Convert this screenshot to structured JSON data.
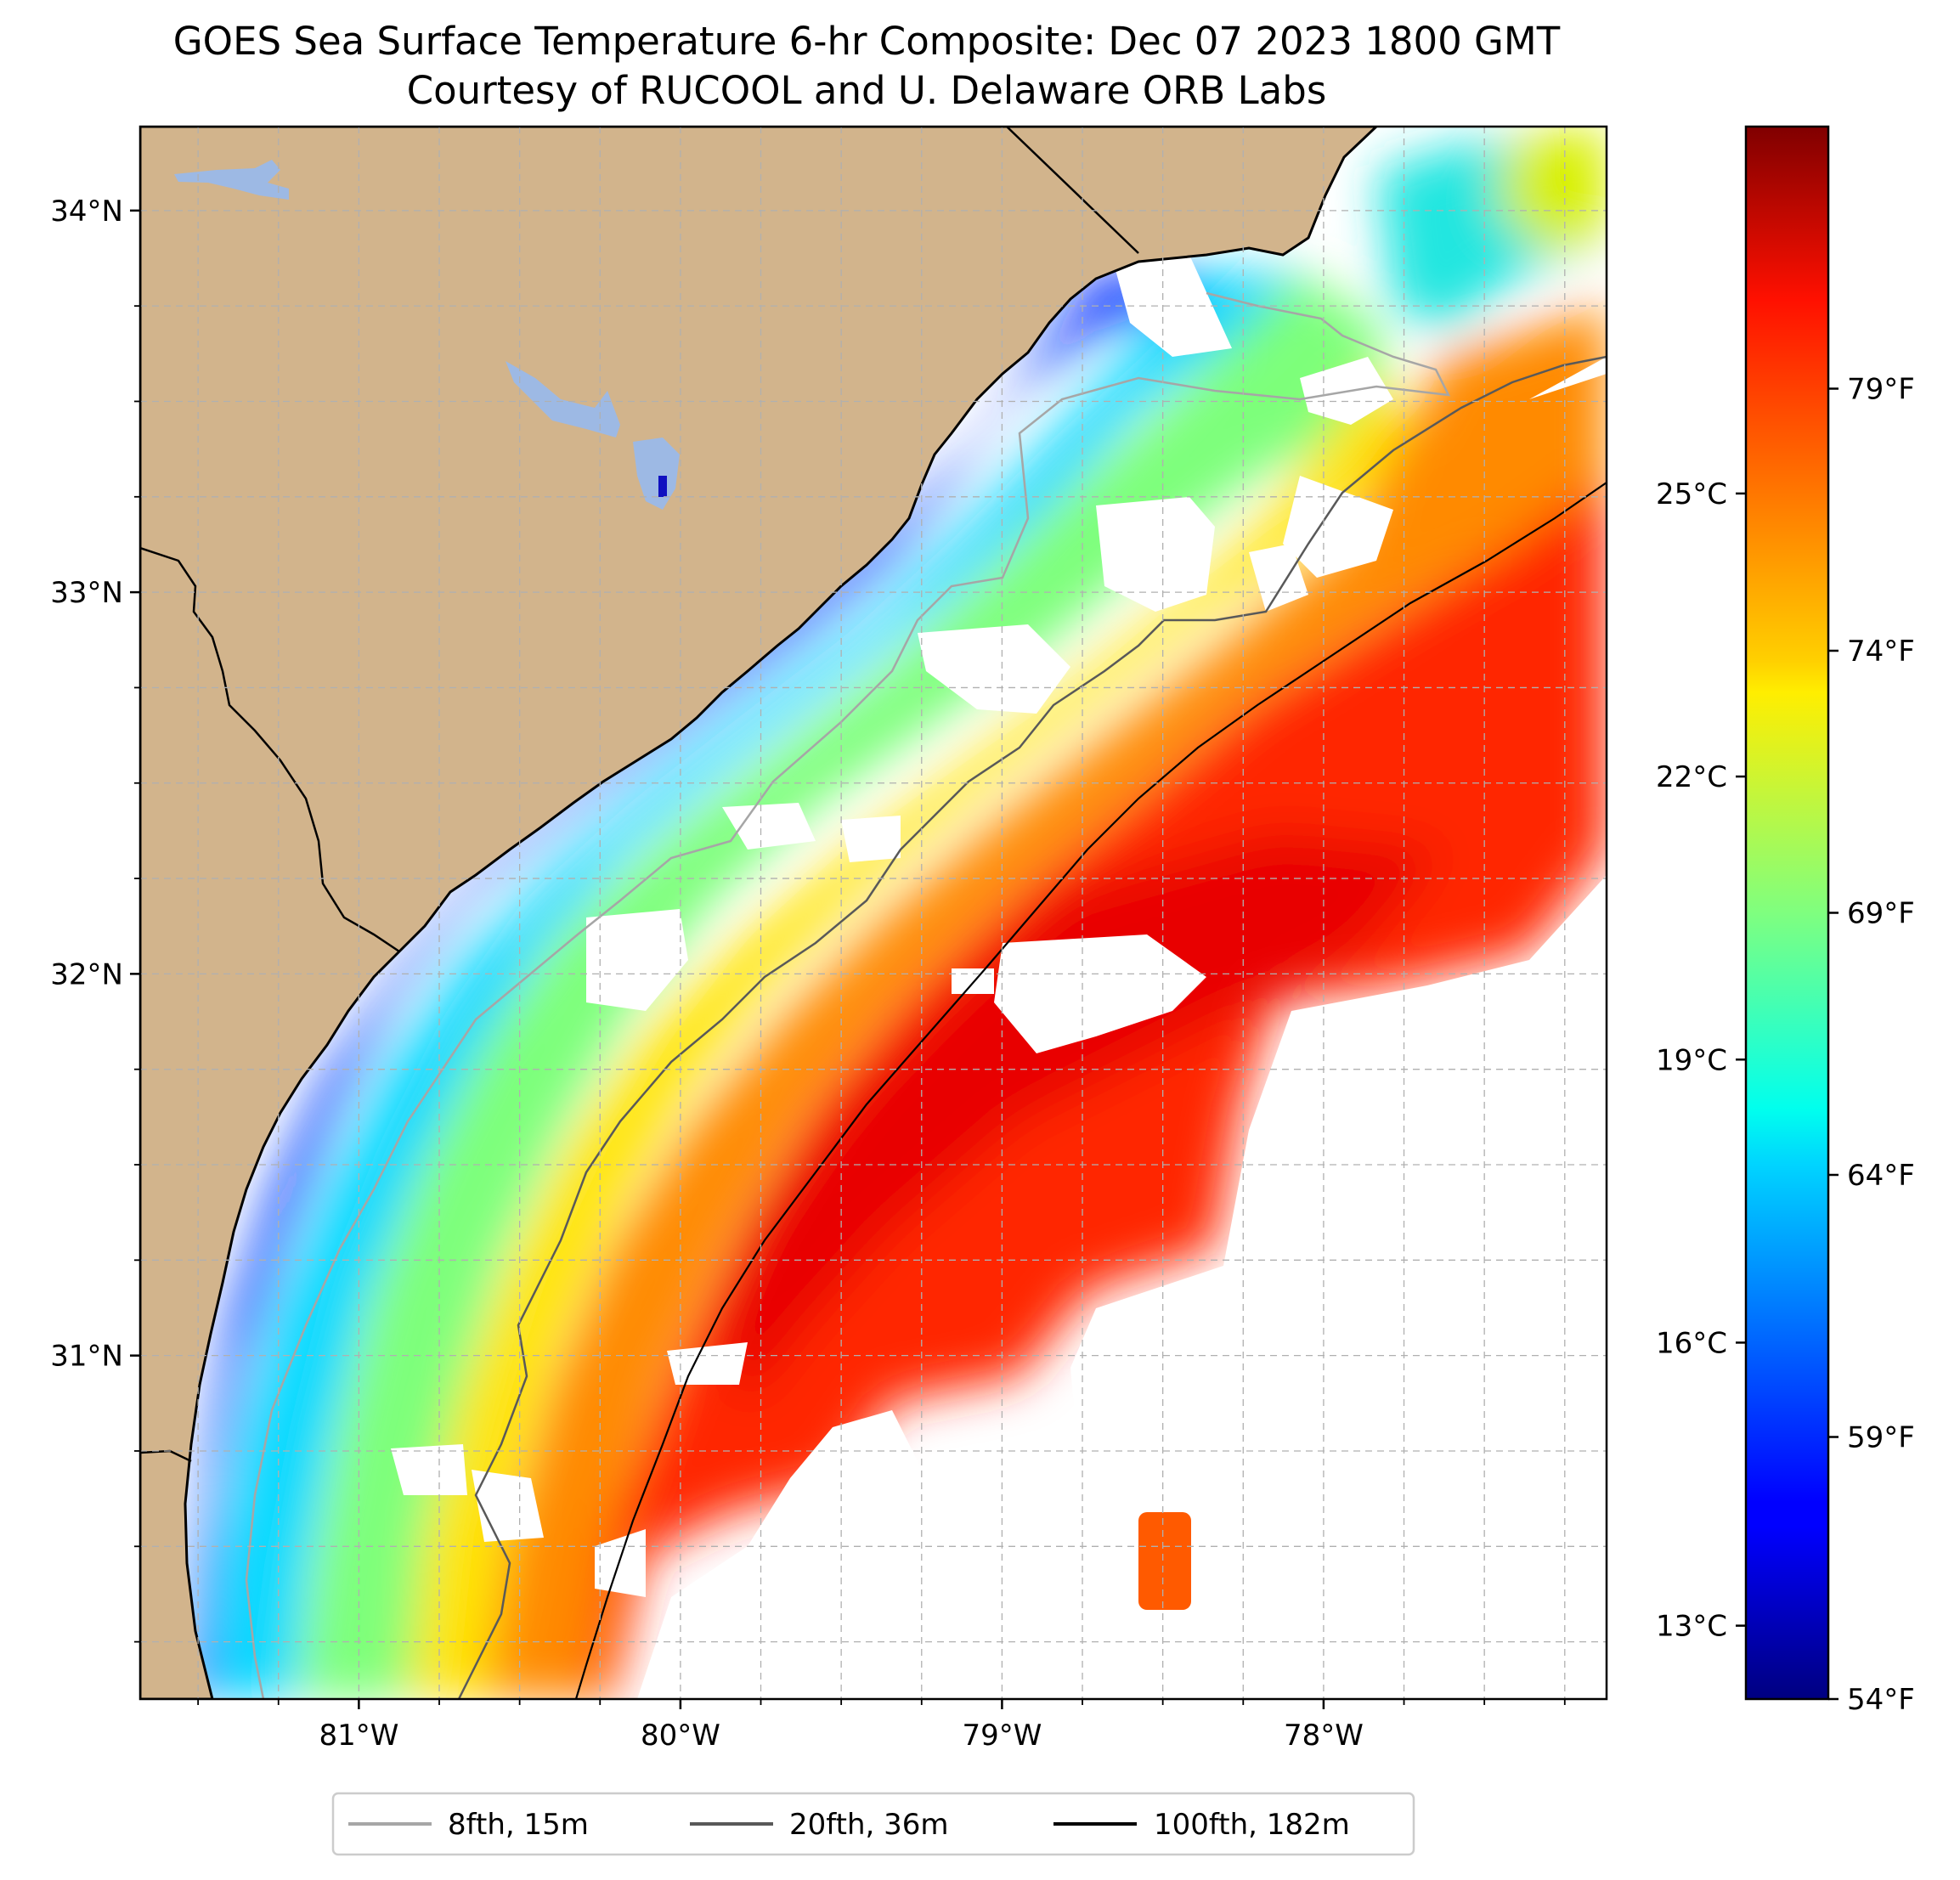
{
  "title": {
    "line1": "GOES Sea Surface Temperature 6-hr Composite: Dec 07 2023 1800 GMT",
    "line2": "Courtesy of RUCOOL and U. Delaware ORB Labs"
  },
  "map": {
    "lat_range": [
      30.1,
      34.22
    ],
    "lon_range": [
      -81.68,
      -77.12
    ],
    "lat_ticks": [
      {
        "value": 34,
        "label": "34°N"
      },
      {
        "value": 33,
        "label": "33°N"
      },
      {
        "value": 32,
        "label": "32°N"
      },
      {
        "value": 31,
        "label": "31°N"
      }
    ],
    "lon_ticks": [
      {
        "value": -81,
        "label": "81°W"
      },
      {
        "value": -80,
        "label": "80°W"
      },
      {
        "value": -79,
        "label": "79°W"
      },
      {
        "value": -78,
        "label": "78°W"
      }
    ],
    "minor_gridline_step_deg": 0.25,
    "colors": {
      "land": "#d2b48c",
      "lakes": "#9db9e4",
      "no_data": "#ffffff",
      "coastline": "#000000",
      "gridline": "#b0b0b0"
    }
  },
  "colorbar": {
    "colormap": "jet",
    "range_f": [
      54,
      84
    ],
    "fahrenheit_ticks": [
      {
        "value": 54,
        "label": "54°F"
      },
      {
        "value": 59,
        "label": "59°F"
      },
      {
        "value": 64,
        "label": "64°F"
      },
      {
        "value": 69,
        "label": "69°F"
      },
      {
        "value": 74,
        "label": "74°F"
      },
      {
        "value": 79,
        "label": "79°F"
      }
    ],
    "celsius_ticks": [
      {
        "value": 13,
        "label": "13°C"
      },
      {
        "value": 16,
        "label": "16°C"
      },
      {
        "value": 19,
        "label": "19°C"
      },
      {
        "value": 22,
        "label": "22°C"
      },
      {
        "value": 25,
        "label": "25°C"
      }
    ]
  },
  "legend": {
    "placement": "bottom-center",
    "items": [
      {
        "label": "8fth, 15m",
        "color": "#a6a6a6"
      },
      {
        "label": "20fth, 36m",
        "color": "#595959"
      },
      {
        "label": "100fth, 182m",
        "color": "#000000"
      }
    ]
  }
}
